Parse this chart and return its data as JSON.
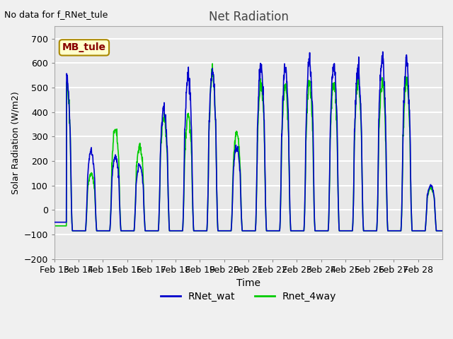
{
  "title": "Net Radiation",
  "xlabel": "Time",
  "ylabel": "Solar Radiation (W/m2)",
  "top_left_text": "No data for f_RNet_tule",
  "legend_label_box": "MB_tule",
  "ylim": [
    -200,
    750
  ],
  "yticks": [
    -200,
    -100,
    0,
    100,
    200,
    300,
    400,
    500,
    600,
    700
  ],
  "xtick_labels": [
    "Feb 13",
    "Feb 14",
    "Feb 15",
    "Feb 16",
    "Feb 17",
    "Feb 18",
    "Feb 19",
    "Feb 20",
    "Feb 21",
    "Feb 22",
    "Feb 23",
    "Feb 24",
    "Feb 25",
    "Feb 26",
    "Feb 27",
    "Feb 28"
  ],
  "color_blue": "#0000CC",
  "color_green": "#00CC00",
  "line_width": 1.2,
  "legend_labels": [
    "RNet_wat",
    "Rnet_4way"
  ],
  "bg_color": "#E8E8E8",
  "grid_color": "#FFFFFF",
  "title_color": "#444444",
  "box_facecolor": "#FFFFCC",
  "box_edgecolor": "#AA8800",
  "box_text_color": "#880000"
}
